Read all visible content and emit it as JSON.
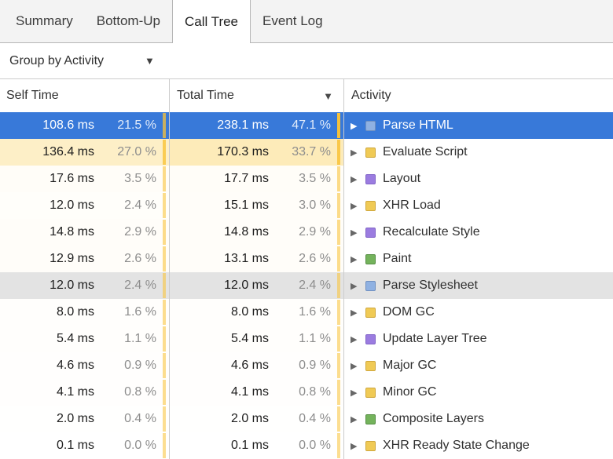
{
  "tabs": [
    {
      "label": "Summary",
      "selected": false
    },
    {
      "label": "Bottom-Up",
      "selected": false
    },
    {
      "label": "Call Tree",
      "selected": true
    },
    {
      "label": "Event Log",
      "selected": false
    }
  ],
  "toolbar": {
    "group_by": "Group by Activity"
  },
  "icons": {
    "dropdown": "▼",
    "sort_desc": "▼",
    "disclosure": "▶"
  },
  "table": {
    "columns": {
      "self_time": "Self Time",
      "total_time": "Total Time",
      "activity": "Activity"
    },
    "sort": {
      "column": "total_time",
      "direction": "descending"
    },
    "rows": [
      {
        "self": "108.6 ms",
        "self_pct": "21.5 %",
        "total": "238.1 ms",
        "total_pct": "47.1 %",
        "label": "Parse HTML",
        "cat": "loading",
        "state": "selected"
      },
      {
        "self": "136.4 ms",
        "self_pct": "27.0 %",
        "total": "170.3 ms",
        "total_pct": "33.7 %",
        "label": "Evaluate Script",
        "cat": "scripting",
        "state": ""
      },
      {
        "self": "17.6 ms",
        "self_pct": "3.5 %",
        "total": "17.7 ms",
        "total_pct": "3.5 %",
        "label": "Layout",
        "cat": "rendering",
        "state": ""
      },
      {
        "self": "12.0 ms",
        "self_pct": "2.4 %",
        "total": "15.1 ms",
        "total_pct": "3.0 %",
        "label": "XHR Load",
        "cat": "scripting",
        "state": ""
      },
      {
        "self": "14.8 ms",
        "self_pct": "2.9 %",
        "total": "14.8 ms",
        "total_pct": "2.9 %",
        "label": "Recalculate Style",
        "cat": "rendering",
        "state": ""
      },
      {
        "self": "12.9 ms",
        "self_pct": "2.6 %",
        "total": "13.1 ms",
        "total_pct": "2.6 %",
        "label": "Paint",
        "cat": "painting",
        "state": ""
      },
      {
        "self": "12.0 ms",
        "self_pct": "2.4 %",
        "total": "12.0 ms",
        "total_pct": "2.4 %",
        "label": "Parse Stylesheet",
        "cat": "loading",
        "state": "hover"
      },
      {
        "self": "8.0 ms",
        "self_pct": "1.6 %",
        "total": "8.0 ms",
        "total_pct": "1.6 %",
        "label": "DOM GC",
        "cat": "scripting",
        "state": ""
      },
      {
        "self": "5.4 ms",
        "self_pct": "1.1 %",
        "total": "5.4 ms",
        "total_pct": "1.1 %",
        "label": "Update Layer Tree",
        "cat": "rendering",
        "state": ""
      },
      {
        "self": "4.6 ms",
        "self_pct": "0.9 %",
        "total": "4.6 ms",
        "total_pct": "0.9 %",
        "label": "Major GC",
        "cat": "scripting",
        "state": ""
      },
      {
        "self": "4.1 ms",
        "self_pct": "0.8 %",
        "total": "4.1 ms",
        "total_pct": "0.8 %",
        "label": "Minor GC",
        "cat": "scripting",
        "state": ""
      },
      {
        "self": "2.0 ms",
        "self_pct": "0.4 %",
        "total": "2.0 ms",
        "total_pct": "0.4 %",
        "label": "Composite Layers",
        "cat": "painting",
        "state": ""
      },
      {
        "self": "0.1 ms",
        "self_pct": "0.0 %",
        "total": "0.1 ms",
        "total_pct": "0.0 %",
        "label": "XHR Ready State Change",
        "cat": "scripting",
        "state": ""
      }
    ]
  },
  "colors": {
    "selection": "#3879d9",
    "hover_row": "#e3e3e3",
    "heat_bar": "#f9c337",
    "heat_tint": "250,210,95",
    "categories": {
      "loading": {
        "fill": "#8fb1e2",
        "border": "#7090c0"
      },
      "scripting": {
        "fill": "#f0ca55",
        "border": "#cfa73e"
      },
      "rendering": {
        "fill": "#9b7ce0",
        "border": "#8265c8"
      },
      "painting": {
        "fill": "#74b35c",
        "border": "#568e44"
      }
    }
  }
}
